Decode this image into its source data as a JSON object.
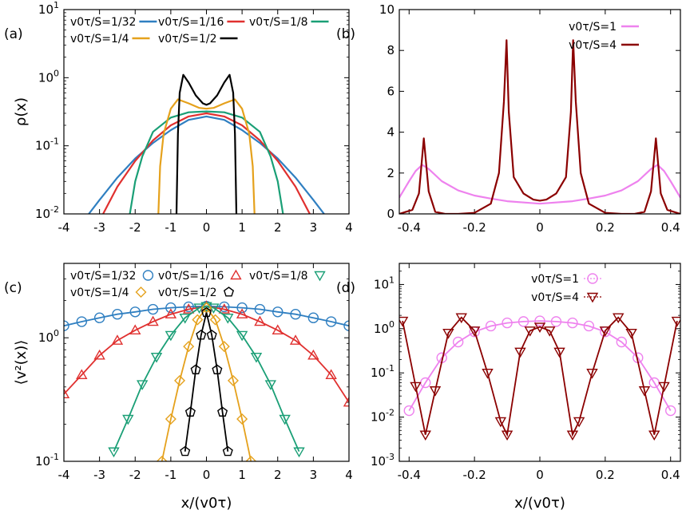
{
  "chart_data": [
    {
      "panel": "(a)",
      "type": "line",
      "ylabel": "ρ(x)",
      "yscale": "log",
      "xlim": [
        -4,
        4
      ],
      "ylim": [
        0.01,
        10
      ],
      "xticks": [
        "-4",
        "-3",
        "-2",
        "-1",
        "0",
        "1",
        "2",
        "3",
        "4"
      ],
      "yticks": [
        "10^-2",
        "10^-1",
        "10^0",
        "10^1"
      ],
      "series": [
        {
          "name": "v0τ/S=1/32",
          "color": "#2f7fc1",
          "x": [
            -3.3,
            -3.0,
            -2.5,
            -2.0,
            -1.5,
            -1.0,
            -0.5,
            0,
            0.5,
            1.0,
            1.5,
            2.0,
            2.5,
            3.0,
            3.3
          ],
          "y": [
            0.01,
            0.016,
            0.034,
            0.065,
            0.11,
            0.17,
            0.24,
            0.27,
            0.24,
            0.17,
            0.11,
            0.065,
            0.034,
            0.016,
            0.01
          ]
        },
        {
          "name": "v0τ/S=1/16",
          "color": "#e0302f",
          "x": [
            -2.9,
            -2.5,
            -2.0,
            -1.5,
            -1.0,
            -0.5,
            0,
            0.5,
            1.0,
            1.5,
            2.0,
            2.5,
            2.9
          ],
          "y": [
            0.01,
            0.025,
            0.06,
            0.12,
            0.2,
            0.27,
            0.3,
            0.27,
            0.2,
            0.12,
            0.06,
            0.025,
            0.01
          ]
        },
        {
          "name": "v0τ/S=1/8",
          "color": "#1a9f76",
          "x": [
            -2.15,
            -2.0,
            -1.8,
            -1.5,
            -1.0,
            -0.5,
            0,
            0.5,
            1.0,
            1.5,
            1.8,
            2.0,
            2.15
          ],
          "y": [
            0.01,
            0.03,
            0.07,
            0.16,
            0.26,
            0.31,
            0.32,
            0.31,
            0.26,
            0.16,
            0.07,
            0.03,
            0.01
          ]
        },
        {
          "name": "v0τ/S=1/4",
          "color": "#e5a11c",
          "x": [
            -1.35,
            -1.3,
            -1.2,
            -1.0,
            -0.8,
            -0.5,
            -0.2,
            0,
            0.2,
            0.5,
            0.8,
            1.0,
            1.2,
            1.3,
            1.35
          ],
          "y": [
            0.01,
            0.05,
            0.15,
            0.35,
            0.48,
            0.42,
            0.36,
            0.35,
            0.36,
            0.42,
            0.48,
            0.35,
            0.15,
            0.05,
            0.01
          ]
        },
        {
          "name": "v0τ/S=1/2",
          "color": "#000000",
          "x": [
            -0.84,
            -0.8,
            -0.75,
            -0.65,
            -0.5,
            -0.3,
            -0.1,
            0,
            0.1,
            0.3,
            0.5,
            0.65,
            0.75,
            0.8,
            0.84
          ],
          "y": [
            0.01,
            0.15,
            0.6,
            1.1,
            0.85,
            0.55,
            0.42,
            0.4,
            0.42,
            0.55,
            0.85,
            1.1,
            0.6,
            0.15,
            0.01
          ]
        }
      ]
    },
    {
      "panel": "(b)",
      "type": "line",
      "xlim": [
        -0.43,
        0.43
      ],
      "ylim": [
        0,
        10
      ],
      "xticks": [
        "-0.4",
        "-0.2",
        "0",
        "0.2",
        "0.4"
      ],
      "yticks": [
        "0",
        "2",
        "4",
        "6",
        "8",
        "10"
      ],
      "series": [
        {
          "name": "v0τ/S=1",
          "color": "#ee82ee",
          "x": [
            -0.43,
            -0.4,
            -0.38,
            -0.36,
            -0.34,
            -0.3,
            -0.25,
            -0.2,
            -0.15,
            -0.1,
            0,
            0.1,
            0.15,
            0.2,
            0.25,
            0.3,
            0.34,
            0.36,
            0.38,
            0.4,
            0.43
          ],
          "y": [
            0.8,
            1.6,
            2.1,
            2.4,
            2.2,
            1.6,
            1.15,
            0.9,
            0.75,
            0.62,
            0.5,
            0.62,
            0.75,
            0.9,
            1.15,
            1.6,
            2.2,
            2.4,
            2.1,
            1.6,
            0.8
          ]
        },
        {
          "name": "v0τ/S=4",
          "color": "#8b0000",
          "x": [
            -0.43,
            -0.39,
            -0.37,
            -0.355,
            -0.34,
            -0.32,
            -0.29,
            -0.25,
            -0.2,
            -0.15,
            -0.125,
            -0.11,
            -0.102,
            -0.095,
            -0.08,
            -0.05,
            -0.02,
            0,
            0.02,
            0.05,
            0.08,
            0.095,
            0.102,
            0.11,
            0.125,
            0.15,
            0.2,
            0.25,
            0.29,
            0.32,
            0.34,
            0.355,
            0.37,
            0.39,
            0.43
          ],
          "y": [
            0,
            0.2,
            1.0,
            3.7,
            1.1,
            0.1,
            0,
            0,
            0.05,
            0.5,
            2.0,
            5.5,
            8.5,
            5.0,
            1.8,
            1.0,
            0.7,
            0.65,
            0.7,
            1.0,
            1.8,
            5.0,
            8.5,
            5.5,
            2.0,
            0.5,
            0.05,
            0,
            0,
            0.1,
            1.1,
            3.7,
            1.0,
            0.2,
            0
          ]
        }
      ]
    },
    {
      "panel": "(c)",
      "type": "scatter",
      "xlabel": "x/(v0τ)",
      "ylabel": "⟨v²(x)⟩",
      "yscale": "log",
      "xlim": [
        -4,
        4
      ],
      "ylim": [
        0.1,
        4
      ],
      "xticks": [
        "-4",
        "-3",
        "-2",
        "-1",
        "0",
        "1",
        "2",
        "3",
        "4"
      ],
      "yticks": [
        "10^-1",
        "10^0"
      ],
      "series": [
        {
          "name": "v0τ/S=1/32",
          "color": "#2f7fc1",
          "marker": "circle",
          "x": [
            -4,
            -3.5,
            -3,
            -2.5,
            -2,
            -1.5,
            -1,
            -0.5,
            0,
            0.5,
            1,
            1.5,
            2,
            2.5,
            3,
            3.5,
            4
          ],
          "y": [
            1.25,
            1.35,
            1.45,
            1.55,
            1.62,
            1.7,
            1.75,
            1.78,
            1.8,
            1.78,
            1.75,
            1.7,
            1.62,
            1.55,
            1.45,
            1.35,
            1.25
          ]
        },
        {
          "name": "v0τ/S=1/16",
          "color": "#e0302f",
          "marker": "triangle",
          "x": [
            -4,
            -3.5,
            -3,
            -2.5,
            -2,
            -1.5,
            -1,
            -0.5,
            0,
            0.5,
            1,
            1.5,
            2,
            2.5,
            3,
            3.5,
            4
          ],
          "y": [
            0.35,
            0.5,
            0.72,
            0.95,
            1.15,
            1.35,
            1.55,
            1.7,
            1.8,
            1.7,
            1.55,
            1.35,
            1.15,
            0.95,
            0.72,
            0.5,
            0.3
          ]
        },
        {
          "name": "v0τ/S=1/8",
          "color": "#1a9f76",
          "marker": "triangle-down",
          "x": [
            -2.6,
            -2.2,
            -1.8,
            -1.4,
            -1,
            -0.6,
            -0.2,
            0,
            0.2,
            0.6,
            1,
            1.4,
            1.8,
            2.2,
            2.6
          ],
          "y": [
            0.12,
            0.22,
            0.42,
            0.7,
            1.05,
            1.45,
            1.75,
            1.8,
            1.75,
            1.45,
            1.05,
            0.7,
            0.42,
            0.22,
            0.12
          ]
        },
        {
          "name": "v0τ/S=1/4",
          "color": "#e5a11c",
          "marker": "diamond",
          "x": [
            -1.25,
            -1,
            -0.75,
            -0.5,
            -0.25,
            0,
            0.25,
            0.5,
            0.75,
            1,
            1.25
          ],
          "y": [
            0.1,
            0.22,
            0.45,
            0.85,
            1.4,
            1.75,
            1.4,
            0.85,
            0.45,
            0.22,
            0.1
          ]
        },
        {
          "name": "v0τ/S=1/2",
          "color": "#000000",
          "marker": "pentagon",
          "x": [
            -0.6,
            -0.45,
            -0.3,
            -0.15,
            0,
            0.15,
            0.3,
            0.45,
            0.6
          ],
          "y": [
            0.12,
            0.25,
            0.55,
            1.05,
            1.6,
            1.05,
            0.55,
            0.25,
            0.12
          ]
        }
      ]
    },
    {
      "panel": "(d)",
      "type": "scatter",
      "xlabel": "x/(v0τ)",
      "yscale": "log",
      "xlim": [
        -0.43,
        0.43
      ],
      "ylim": [
        0.001,
        30
      ],
      "xticks": [
        "-0.4",
        "-0.2",
        "0",
        "0.2",
        "0.4"
      ],
      "yticks": [
        "10^-3",
        "10^-2",
        "10^-1",
        "10^0",
        "10^1"
      ],
      "series": [
        {
          "name": "v0τ/S=1",
          "color": "#ee82ee",
          "marker": "circle",
          "x": [
            -0.4,
            -0.35,
            -0.3,
            -0.25,
            -0.2,
            -0.15,
            -0.1,
            -0.05,
            0,
            0.05,
            0.1,
            0.15,
            0.2,
            0.25,
            0.3,
            0.35,
            0.4
          ],
          "y": [
            0.014,
            0.06,
            0.22,
            0.5,
            0.85,
            1.15,
            1.35,
            1.45,
            1.5,
            1.45,
            1.35,
            1.15,
            0.85,
            0.5,
            0.22,
            0.06,
            0.014
          ]
        },
        {
          "name": "v0τ/S=4",
          "color": "#8b0000",
          "marker": "triangle-down",
          "x": [
            -0.42,
            -0.38,
            -0.35,
            -0.32,
            -0.28,
            -0.24,
            -0.2,
            -0.16,
            -0.12,
            -0.1,
            -0.06,
            -0.03,
            0,
            0.03,
            0.06,
            0.1,
            0.12,
            0.16,
            0.2,
            0.24,
            0.28,
            0.32,
            0.35,
            0.38,
            0.42
          ],
          "y": [
            1.5,
            0.05,
            0.004,
            0.04,
            0.8,
            1.8,
            0.9,
            0.1,
            0.008,
            0.004,
            0.3,
            0.9,
            1.1,
            0.9,
            0.3,
            0.004,
            0.008,
            0.1,
            0.9,
            1.8,
            0.8,
            0.04,
            0.004,
            0.05,
            1.5
          ]
        }
      ]
    }
  ]
}
